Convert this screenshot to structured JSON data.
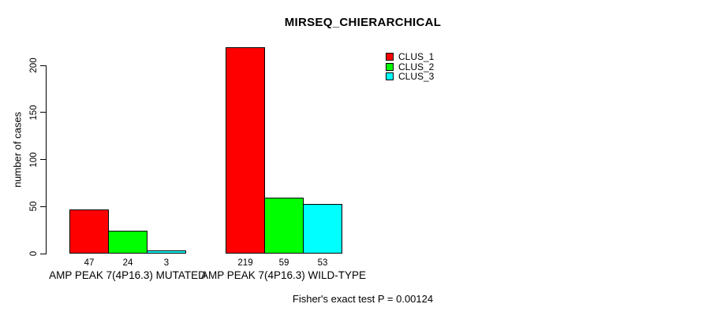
{
  "chart_data": {
    "type": "bar",
    "title": "MIRSEQ_CHIERARCHICAL",
    "xlabel": "",
    "ylabel": "number of cases",
    "ylim": [
      0,
      220
    ],
    "yticks": [
      0,
      50,
      100,
      150,
      200
    ],
    "grid": false,
    "legend_position": "top-right",
    "categories": [
      "AMP PEAK 7(4P16.3) MUTATED",
      "AMP PEAK 7(4P16.3) WILD-TYPE"
    ],
    "series": [
      {
        "name": "CLUS_1",
        "color": "#ff0000",
        "values": [
          47,
          219
        ]
      },
      {
        "name": "CLUS_2",
        "color": "#00ff00",
        "values": [
          24,
          59
        ]
      },
      {
        "name": "CLUS_3",
        "color": "#00ffff",
        "values": [
          3,
          53
        ]
      }
    ],
    "bar_value_labels": [
      [
        47,
        24,
        3
      ],
      [
        219,
        59,
        53
      ]
    ],
    "annotation": "Fisher's exact test P = 0.00124"
  },
  "colors": {
    "background": "#ffffff",
    "text": "#000000",
    "bar_border": "#000000"
  }
}
